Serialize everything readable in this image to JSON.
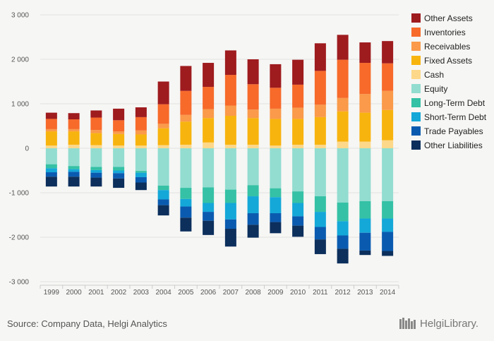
{
  "chart_data": {
    "type": "bar",
    "stacked": true,
    "title": "",
    "xlabel": "",
    "ylabel": "",
    "ylim": [
      -3000,
      3000
    ],
    "yticks": [
      3000,
      2000,
      1000,
      0,
      -1000,
      -2000,
      -3000
    ],
    "ytick_labels": [
      "3 000",
      "2 000",
      "1 000",
      "0",
      "-1 000",
      "-2 000",
      "-3 000"
    ],
    "categories": [
      "1999",
      "2000",
      "2001",
      "2002",
      "2003",
      "2004",
      "2005",
      "2006",
      "2007",
      "2008",
      "2009",
      "2010",
      "2011",
      "2012",
      "2013",
      "2014"
    ],
    "grid": true,
    "legend_position": "right",
    "series": [
      {
        "name": "Cash",
        "group": "assets",
        "color": "#fdd88a",
        "values": [
          60,
          80,
          70,
          60,
          60,
          70,
          80,
          130,
          80,
          80,
          60,
          80,
          80,
          150,
          150,
          180
        ]
      },
      {
        "name": "Fixed Assets",
        "group": "assets",
        "color": "#f8b40e",
        "values": [
          320,
          300,
          270,
          260,
          250,
          380,
          520,
          550,
          650,
          600,
          600,
          580,
          620,
          680,
          650,
          680
        ]
      },
      {
        "name": "Receivables",
        "group": "assets",
        "color": "#fa9a4a",
        "values": [
          50,
          50,
          70,
          60,
          90,
          100,
          150,
          200,
          230,
          190,
          230,
          250,
          280,
          300,
          420,
          430
        ]
      },
      {
        "name": "Inventories",
        "group": "assets",
        "color": "#f76a2a",
        "values": [
          230,
          220,
          280,
          250,
          300,
          440,
          540,
          500,
          690,
          570,
          470,
          520,
          760,
          860,
          700,
          620
        ]
      },
      {
        "name": "Other Assets",
        "group": "assets",
        "color": "#9e1b1e",
        "values": [
          140,
          140,
          160,
          260,
          220,
          510,
          560,
          540,
          550,
          560,
          530,
          560,
          620,
          560,
          460,
          500
        ]
      },
      {
        "name": "Equity",
        "group": "liabilities",
        "color": "#92ddd0",
        "values": [
          360,
          400,
          420,
          420,
          510,
          840,
          890,
          880,
          930,
          830,
          900,
          970,
          1080,
          1220,
          1190,
          1190
        ]
      },
      {
        "name": "Long-Term Debt",
        "group": "liabilities",
        "color": "#35c1a5",
        "values": [
          90,
          70,
          70,
          80,
          40,
          100,
          250,
          350,
          300,
          250,
          200,
          260,
          350,
          420,
          390,
          390
        ]
      },
      {
        "name": "Short-Term Debt",
        "group": "liabilities",
        "color": "#14a8d8",
        "values": [
          90,
          60,
          60,
          60,
          100,
          210,
          170,
          200,
          370,
          380,
          360,
          300,
          340,
          320,
          320,
          300
        ]
      },
      {
        "name": "Trade Payables",
        "group": "liabilities",
        "color": "#0a5bb0",
        "values": [
          100,
          110,
          110,
          120,
          120,
          130,
          250,
          200,
          210,
          260,
          200,
          210,
          280,
          300,
          400,
          430
        ]
      },
      {
        "name": "Other Liabilities",
        "group": "liabilities",
        "color": "#0c2f5c",
        "values": [
          220,
          220,
          200,
          210,
          170,
          230,
          310,
          320,
          400,
          290,
          250,
          250,
          330,
          330,
          100,
          110
        ]
      }
    ],
    "legend_order": [
      "Other Assets",
      "Inventories",
      "Receivables",
      "Fixed Assets",
      "Cash",
      "Equity",
      "Long-Term Debt",
      "Short-Term Debt",
      "Trade Payables",
      "Other Liabilities"
    ]
  },
  "footer": {
    "source": "Source: Company Data, Helgi Analytics",
    "logo_text": "HelgiLibrary."
  }
}
